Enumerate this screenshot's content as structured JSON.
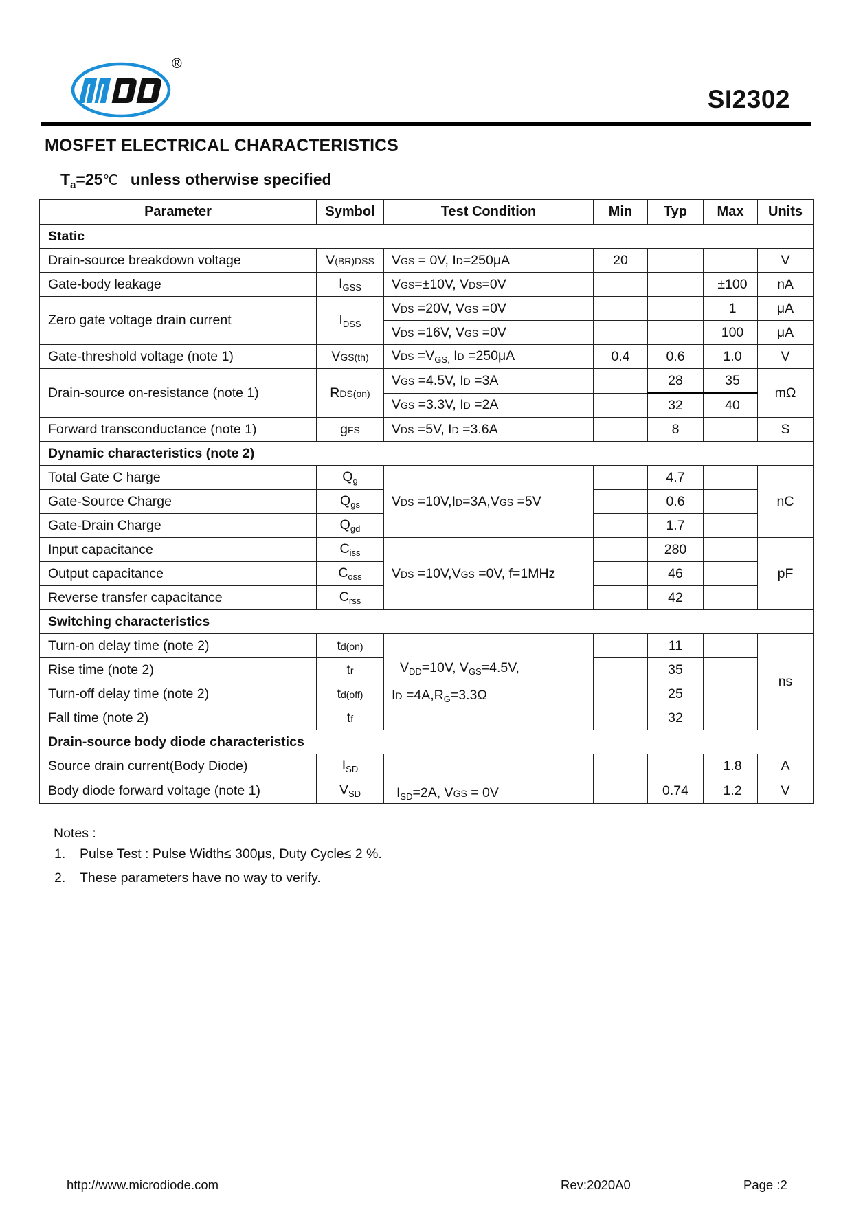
{
  "header": {
    "logo_text": "MDD",
    "registered_mark": "®",
    "part_number": "SI2302",
    "brand_color": "#1a8fd8"
  },
  "title": "MOSFET  ELECTRICAL CHARACTERISTICS",
  "condition": {
    "t": "T",
    "sub": "a",
    "value": "=25",
    "unit": "℃",
    "text": "unless otherwise specified"
  },
  "table": {
    "columns": [
      "Parameter",
      "Symbol",
      "Test Condition",
      "Min",
      "Typ",
      "Max",
      "Units"
    ],
    "rows": [
      {
        "section": "Static"
      },
      {
        "param": "Drain-source breakdown voltage",
        "symbol": [
          [
            "V",
            ""
          ],
          [
            "(BR)DSS",
            "sm"
          ]
        ],
        "cond": [
          [
            "V",
            ""
          ],
          [
            "GS",
            "sm"
          ],
          [
            " = 0V, I",
            ""
          ],
          [
            "D",
            "sm"
          ],
          [
            "=250μA",
            ""
          ]
        ],
        "min": "20",
        "typ": "",
        "max": "",
        "units": "V"
      },
      {
        "param": "Gate-body leakage",
        "symbol": [
          [
            "I",
            ""
          ],
          [
            "GSS",
            "sub"
          ]
        ],
        "cond": [
          [
            "V",
            ""
          ],
          [
            "GS",
            "sm"
          ],
          [
            "=±10V, V",
            ""
          ],
          [
            "DS",
            "sm"
          ],
          [
            "=0V",
            ""
          ]
        ],
        "min": "",
        "typ": "",
        "max": "±100",
        "units": "nA"
      },
      {
        "param": "Zero gate voltage drain current",
        "param_rows": 2,
        "symbol": [
          [
            "I",
            ""
          ],
          [
            "DSS",
            "sub"
          ]
        ],
        "cond": [
          [
            "V",
            ""
          ],
          [
            "DS",
            "sm"
          ],
          [
            " =20V, V",
            ""
          ],
          [
            "GS",
            "sm"
          ],
          [
            " =0V",
            ""
          ]
        ],
        "min": "",
        "typ": "",
        "max": "1",
        "units": "μA"
      },
      {
        "cont": true,
        "cond": [
          [
            "V",
            ""
          ],
          [
            "DS",
            "sm"
          ],
          [
            " =16V, V",
            ""
          ],
          [
            "GS",
            "sm"
          ],
          [
            " =0V",
            ""
          ]
        ],
        "min": "",
        "typ": "",
        "max": "100",
        "units": "μA"
      },
      {
        "param": "Gate-threshold voltage (note 1)",
        "symbol": [
          [
            "V",
            ""
          ],
          [
            "GS(th)",
            "sm"
          ]
        ],
        "cond": [
          [
            "V",
            ""
          ],
          [
            "DS",
            "sm"
          ],
          [
            " =V",
            ""
          ],
          [
            "GS,",
            "sub"
          ],
          [
            " I",
            ""
          ],
          [
            "D",
            "sm"
          ],
          [
            " =250μA",
            ""
          ]
        ],
        "min": "0.4",
        "typ": "0.6",
        "max": "1.0",
        "units": "V"
      },
      {
        "param": "Drain-source on-resistance (note 1)",
        "param_rows": 2,
        "units_rows": 2,
        "symbol": [
          [
            "R",
            ""
          ],
          [
            "DS(on)",
            "sm"
          ]
        ],
        "cond": [
          [
            "V",
            ""
          ],
          [
            "GS",
            "sm"
          ],
          [
            " =4.5V, I",
            ""
          ],
          [
            "D",
            "sm"
          ],
          [
            " =3A",
            ""
          ]
        ],
        "min": "",
        "typ": "28",
        "max": "35",
        "units": "mΩ"
      },
      {
        "cont": true,
        "no_units": true,
        "cond": [
          [
            "V",
            ""
          ],
          [
            "GS",
            "sm"
          ],
          [
            " =3.3V, I",
            ""
          ],
          [
            "D",
            "sm"
          ],
          [
            " =2A",
            ""
          ]
        ],
        "min": "",
        "typ": "32",
        "max": "40"
      },
      {
        "param": "Forward transconductance (note 1)",
        "symbol": [
          [
            "g",
            ""
          ],
          [
            "FS",
            "sm"
          ]
        ],
        "cond": [
          [
            "V",
            ""
          ],
          [
            "DS",
            "sm"
          ],
          [
            " =5V, I",
            ""
          ],
          [
            "D",
            "sm"
          ],
          [
            " =3.6A",
            ""
          ]
        ],
        "min": "",
        "typ": "8",
        "max": "",
        "units": "S"
      },
      {
        "section": "Dynamic characteristics (note 2)"
      },
      {
        "param": "Total Gate C harge",
        "symbol": [
          [
            "Q",
            ""
          ],
          [
            "g",
            "sub"
          ]
        ],
        "cond_rows": 3,
        "units_rows": 3,
        "cond": [
          [
            "V",
            ""
          ],
          [
            "DS",
            "sm"
          ],
          [
            " =10V,I",
            ""
          ],
          [
            "D",
            "sm"
          ],
          [
            "=3A,V",
            ""
          ],
          [
            "GS",
            "sm"
          ],
          [
            " =5V",
            ""
          ]
        ],
        "min": "",
        "typ": "4.7",
        "max": "",
        "units": "nC"
      },
      {
        "param": "Gate-Source Charge",
        "symbol": [
          [
            "Q",
            ""
          ],
          [
            "gs",
            "sub"
          ]
        ],
        "no_cond": true,
        "no_units": true,
        "min": "",
        "typ": "0.6",
        "max": ""
      },
      {
        "param": "Gate-Drain Charge",
        "symbol": [
          [
            "Q",
            ""
          ],
          [
            "gd",
            "sub"
          ]
        ],
        "no_cond": true,
        "no_units": true,
        "min": "",
        "typ": "1.7",
        "max": ""
      },
      {
        "param": "Input capacitance",
        "symbol": [
          [
            "C",
            ""
          ],
          [
            "iss",
            "sub"
          ]
        ],
        "cond_rows": 3,
        "units_rows": 3,
        "cond": [
          [
            "V",
            ""
          ],
          [
            "DS",
            "sm"
          ],
          [
            " =10V,V",
            ""
          ],
          [
            "GS",
            "sm"
          ],
          [
            " =0V, f=1MHz",
            ""
          ]
        ],
        "min": "",
        "typ": "280",
        "max": "",
        "units": "pF"
      },
      {
        "param": "Output capacitance",
        "symbol": [
          [
            "C",
            ""
          ],
          [
            "oss",
            "sub"
          ]
        ],
        "no_cond": true,
        "no_units": true,
        "min": "",
        "typ": "46",
        "max": ""
      },
      {
        "param": "Reverse transfer capacitance",
        "symbol": [
          [
            "C",
            ""
          ],
          [
            "rss",
            "sub"
          ]
        ],
        "no_cond": true,
        "no_units": true,
        "min": "",
        "typ": "42",
        "max": ""
      },
      {
        "section": "Switching characteristics"
      },
      {
        "param": "Turn-on delay time (note 2)",
        "symbol": [
          [
            "t",
            ""
          ],
          [
            "d(on)",
            "sm"
          ]
        ],
        "cond_rows": 4,
        "units_rows": 4,
        "cond": [
          [
            "V",
            ""
          ],
          [
            "DD",
            "sub"
          ],
          [
            "=10V, V",
            ""
          ],
          [
            "GS",
            "sub"
          ],
          [
            "=4.5V,",
            ""
          ]
        ],
        "cond2": [
          [
            "I",
            ""
          ],
          [
            "D",
            "sm"
          ],
          [
            " =4A,R",
            ""
          ],
          [
            "G",
            "sub"
          ],
          [
            "=3.3Ω",
            ""
          ]
        ],
        "min": "",
        "typ": "11",
        "max": "",
        "units": "ns"
      },
      {
        "param": "Rise time (note 2)",
        "symbol": [
          [
            "t",
            ""
          ],
          [
            "r",
            "sm"
          ]
        ],
        "no_cond": true,
        "no_units": true,
        "min": "",
        "typ": "35",
        "max": ""
      },
      {
        "param": "Turn-off delay time (note 2)",
        "symbol": [
          [
            "t",
            ""
          ],
          [
            "d(off)",
            "sm"
          ]
        ],
        "no_cond": true,
        "no_units": true,
        "min": "",
        "typ": "25",
        "max": ""
      },
      {
        "param": "Fall time (note 2)",
        "symbol": [
          [
            "t",
            ""
          ],
          [
            "f",
            "sm"
          ]
        ],
        "no_cond": true,
        "no_units": true,
        "min": "",
        "typ": "32",
        "max": ""
      },
      {
        "section": "Drain-source body diode characteristics"
      },
      {
        "param": "Source drain current(Body Diode)",
        "symbol": [
          [
            "I",
            ""
          ],
          [
            "SD",
            "sub"
          ]
        ],
        "cond": [],
        "min": "",
        "typ": "",
        "max": "1.8",
        "units": "A"
      },
      {
        "param": "Body diode forward voltage (note 1)",
        "symbol": [
          [
            "V",
            ""
          ],
          [
            "SD",
            "sub"
          ]
        ],
        "cond": [
          [
            "I",
            ""
          ],
          [
            "SD",
            "sub"
          ],
          [
            "=2A, V",
            ""
          ],
          [
            "GS",
            "sm"
          ],
          [
            " = 0V",
            ""
          ]
        ],
        "cond_low": true,
        "min": "",
        "typ": "0.74",
        "max": "1.2",
        "units": "V"
      }
    ]
  },
  "notes": {
    "heading": "Notes :",
    "items": [
      {
        "n": "1.",
        "text": "Pulse Test : Pulse Width≤ 300μs, Duty Cycle≤  2  %."
      },
      {
        "n": "2.",
        "text": "These parameters have no way to verify."
      }
    ]
  },
  "footer": {
    "url": "http://www.microdiode.com",
    "rev": "Rev:2020A0",
    "page": "Page :2"
  }
}
